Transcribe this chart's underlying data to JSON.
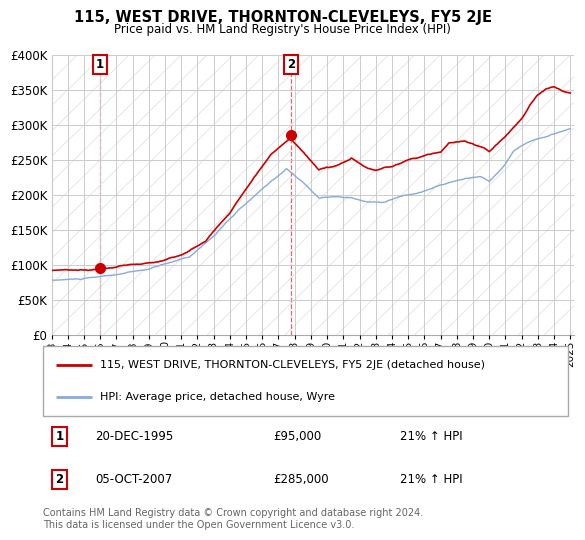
{
  "title": "115, WEST DRIVE, THORNTON-CLEVELEYS, FY5 2JE",
  "subtitle": "Price paid vs. HM Land Registry's House Price Index (HPI)",
  "ylim": [
    0,
    400000
  ],
  "yticks": [
    0,
    50000,
    100000,
    150000,
    200000,
    250000,
    300000,
    350000,
    400000
  ],
  "ytick_labels": [
    "£0",
    "£50K",
    "£100K",
    "£150K",
    "£200K",
    "£250K",
    "£300K",
    "£350K",
    "£400K"
  ],
  "grid_color": "#cccccc",
  "sale1": {
    "date_num": 1995.97,
    "price": 95000,
    "label": "1",
    "date_str": "20-DEC-1995",
    "hpi_pct": "21%"
  },
  "sale2": {
    "date_num": 2007.76,
    "price": 285000,
    "label": "2",
    "date_str": "05-OCT-2007",
    "hpi_pct": "21%"
  },
  "legend_line1": "115, WEST DRIVE, THORNTON-CLEVELEYS, FY5 2JE (detached house)",
  "legend_line2": "HPI: Average price, detached house, Wyre",
  "footer": "Contains HM Land Registry data © Crown copyright and database right 2024.\nThis data is licensed under the Open Government Licence v3.0.",
  "sale_color": "#cc0000",
  "hpi_line_color": "#88aadd",
  "price_line_color": "#cc0000",
  "xtick_years": [
    1993,
    1994,
    1995,
    1996,
    1997,
    1998,
    1999,
    2000,
    2001,
    2002,
    2003,
    2004,
    2005,
    2006,
    2007,
    2008,
    2009,
    2010,
    2011,
    2012,
    2013,
    2014,
    2015,
    2016,
    2017,
    2018,
    2019,
    2020,
    2021,
    2022,
    2023,
    2024,
    2025
  ]
}
